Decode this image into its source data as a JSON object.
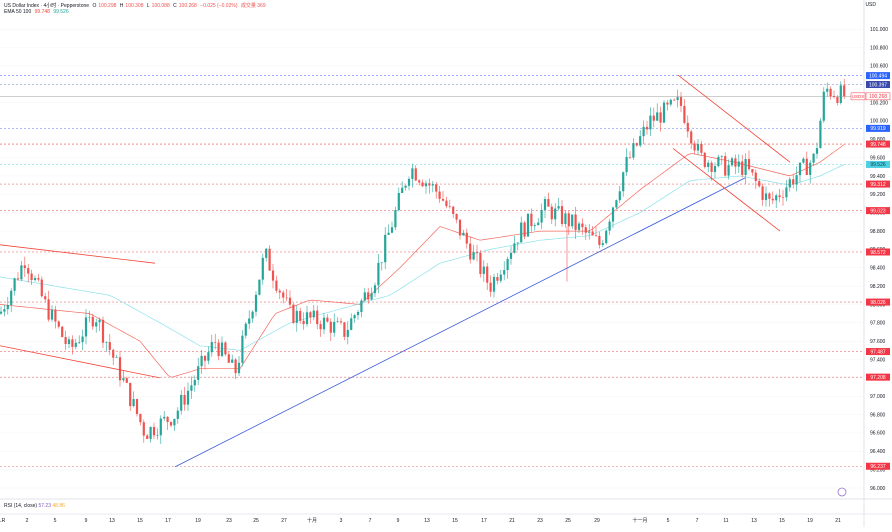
{
  "legend": {
    "symbol": "US Dollar Index · 4小时 · Pepperstone",
    "o_label": "O",
    "o": "100.298",
    "h_label": "H",
    "h": "100.308",
    "l_label": "L",
    "l": "100.088",
    "c_label": "C",
    "c": "100.268",
    "chg": "−0.025 (−0.02%)",
    "extra": "成交量 369",
    "ema_label": "EMA 50 100",
    "ema_v1": "99.748",
    "ema_v2": "99.526"
  },
  "rsi_legend": {
    "label": "RSI (14, close)",
    "v1": "57.23",
    "v2": "48.86"
  },
  "currency": "USD",
  "colors": {
    "up": "#26a69a",
    "down": "#ef5350",
    "ema_fast": "#f44336",
    "ema_slow": "#80deea",
    "trend_blue": "#3b5bdb",
    "level_red": "#e57373",
    "level_blue": "#5c7cfa"
  },
  "chart_data": {
    "type": "candlestick",
    "ylim": [
      96.0,
      101.1
    ],
    "y_ticks": [
      "101.000",
      "100.800",
      "100.600",
      "100.400",
      "100.200",
      "100.000",
      "99.800",
      "99.600",
      "99.400",
      "99.200",
      "99.000",
      "98.800",
      "98.600",
      "98.400",
      "98.200",
      "98.000",
      "97.800",
      "97.600",
      "97.400",
      "97.200",
      "97.000",
      "96.800",
      "96.600",
      "96.400",
      "96.200",
      "96.000"
    ],
    "x_ticks": [
      "LR",
      "2",
      "5",
      "9",
      "13",
      "15",
      "17",
      "19",
      "23",
      "25",
      "27",
      "十月",
      "3",
      "7",
      "9",
      "13",
      "15",
      "17",
      "21",
      "23",
      "25",
      "29",
      "十一月",
      "5",
      "7",
      "11",
      "13",
      "15",
      "19",
      "21"
    ],
    "key_points": [
      {
        "t": 0,
        "v": 97.9
      },
      {
        "t": 25,
        "v": 98.5
      },
      {
        "t": 45,
        "v": 98.0
      },
      {
        "t": 70,
        "v": 97.5
      },
      {
        "t": 95,
        "v": 97.9
      },
      {
        "t": 145,
        "v": 96.6
      },
      {
        "t": 175,
        "v": 96.8
      },
      {
        "t": 215,
        "v": 97.6
      },
      {
        "t": 235,
        "v": 97.25
      },
      {
        "t": 265,
        "v": 98.55
      },
      {
        "t": 290,
        "v": 97.9
      },
      {
        "t": 325,
        "v": 97.8
      },
      {
        "t": 345,
        "v": 97.7
      },
      {
        "t": 375,
        "v": 98.3
      },
      {
        "t": 410,
        "v": 99.5
      },
      {
        "t": 440,
        "v": 99.2
      },
      {
        "t": 465,
        "v": 98.7
      },
      {
        "t": 490,
        "v": 98.2
      },
      {
        "t": 520,
        "v": 98.8
      },
      {
        "t": 545,
        "v": 99.05
      },
      {
        "t": 570,
        "v": 98.9
      },
      {
        "t": 600,
        "v": 98.65
      },
      {
        "t": 625,
        "v": 99.5
      },
      {
        "t": 650,
        "v": 100.0
      },
      {
        "t": 680,
        "v": 100.2
      },
      {
        "t": 700,
        "v": 99.6
      },
      {
        "t": 725,
        "v": 99.5
      },
      {
        "t": 745,
        "v": 99.5
      },
      {
        "t": 770,
        "v": 99.1
      },
      {
        "t": 795,
        "v": 99.4
      },
      {
        "t": 815,
        "v": 99.6
      },
      {
        "t": 825,
        "v": 100.35
      },
      {
        "t": 845,
        "v": 100.27
      }
    ],
    "ema": [
      {
        "name": "EMA 50",
        "anchors": [
          [
            0,
            98.0
          ],
          [
            90,
            97.9
          ],
          [
            140,
            97.6
          ],
          [
            170,
            97.2
          ],
          [
            200,
            97.3
          ],
          [
            240,
            97.3
          ],
          [
            275,
            97.9
          ],
          [
            310,
            98.05
          ],
          [
            360,
            98.0
          ],
          [
            400,
            98.4
          ],
          [
            440,
            98.85
          ],
          [
            480,
            98.7
          ],
          [
            540,
            98.8
          ],
          [
            590,
            98.8
          ],
          [
            640,
            99.25
          ],
          [
            690,
            99.65
          ],
          [
            735,
            99.55
          ],
          [
            790,
            99.4
          ],
          [
            820,
            99.55
          ],
          [
            845,
            99.75
          ]
        ]
      },
      {
        "name": "EMA 100",
        "anchors": [
          [
            0,
            98.3
          ],
          [
            110,
            98.1
          ],
          [
            160,
            97.8
          ],
          [
            200,
            97.55
          ],
          [
            240,
            97.5
          ],
          [
            290,
            97.8
          ],
          [
            340,
            97.95
          ],
          [
            390,
            98.1
          ],
          [
            440,
            98.45
          ],
          [
            490,
            98.6
          ],
          [
            540,
            98.7
          ],
          [
            590,
            98.75
          ],
          [
            640,
            99.0
          ],
          [
            690,
            99.35
          ],
          [
            740,
            99.4
          ],
          [
            790,
            99.3
          ],
          [
            820,
            99.4
          ],
          [
            845,
            99.53
          ]
        ]
      }
    ],
    "trendlines": [
      {
        "kind": "support",
        "color": "blue",
        "from": [
          175,
          96.23
        ],
        "to": [
          745,
          99.38
        ]
      },
      {
        "kind": "channel-top",
        "color": "red",
        "from": [
          0,
          98.65
        ],
        "to": [
          155,
          98.45
        ]
      },
      {
        "kind": "channel-bottom",
        "color": "red",
        "from": [
          0,
          97.55
        ],
        "to": [
          160,
          97.2
        ]
      },
      {
        "kind": "wedge-top",
        "color": "red",
        "from": [
          678,
          100.5
        ],
        "to": [
          790,
          99.55
        ]
      },
      {
        "kind": "wedge-bottom",
        "color": "red",
        "from": [
          673,
          99.7
        ],
        "to": [
          780,
          98.8
        ]
      }
    ],
    "levels": [
      {
        "value": 100.494,
        "label": "100.494",
        "style": "blue"
      },
      {
        "value": 100.397,
        "label": "100.397",
        "style": "blue-grey"
      },
      {
        "value": 100.268,
        "label": "100.268",
        "style": "current",
        "tag": "USDX"
      },
      {
        "value": 99.919,
        "label": "99.919",
        "style": "blue"
      },
      {
        "value": 99.748,
        "label": "99.748",
        "style": "ema-red"
      },
      {
        "value": 99.526,
        "label": "99.526",
        "style": "ema-cyan"
      },
      {
        "value": 99.312,
        "label": "99.312",
        "style": "red"
      },
      {
        "value": 99.023,
        "label": "99.023",
        "style": "red"
      },
      {
        "value": 98.572,
        "label": "98.572",
        "style": "red"
      },
      {
        "value": 98.026,
        "label": "98.026",
        "style": "red"
      },
      {
        "value": 97.487,
        "label": "97.487",
        "style": "red"
      },
      {
        "value": 97.208,
        "label": "97.208",
        "style": "red"
      },
      {
        "value": 96.237,
        "label": "96.237",
        "style": "red"
      }
    ]
  }
}
